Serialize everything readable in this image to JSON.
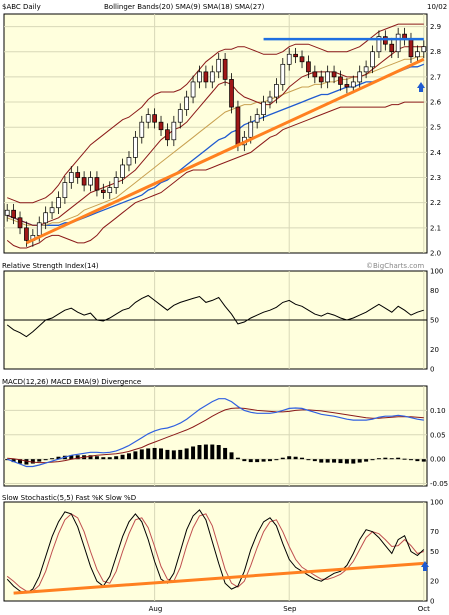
{
  "chart_data": {
    "type": "candlestick",
    "colors": {
      "bg": "#ffffdd",
      "grid": "#d8d8b8",
      "candle_up": "#ffffff",
      "candle_down": "#a01818",
      "bollinger": "#8b1a1a",
      "sma9": "#8b1a1a",
      "sma18": "#c8a050",
      "sma27": "#1f5ad0",
      "rsi": "#000000",
      "macd": "#3060e0",
      "macd_signal": "#8b1a1a",
      "hist": "#000000",
      "fast_k": "#000000",
      "slow_k": "#c05050",
      "trend": "#ff8020",
      "resistance": "#1f6fe0",
      "arrow": "#1f5ad0",
      "watermark": "#888888"
    },
    "header": {
      "symbol": "$ABC Daily",
      "indicators": "Bollinger Bands(20)   SMA(9)   SMA(18)   SMA(27)",
      "date": "10/02"
    },
    "x_labels": [
      {
        "label": "Aug",
        "idx": 23
      },
      {
        "label": "Sep",
        "idx": 44
      },
      {
        "label": "Oct",
        "idx": 65
      }
    ],
    "price_panel": {
      "ylim": [
        2.0,
        2.95
      ],
      "ticks": [
        2.0,
        2.1,
        2.2,
        2.3,
        2.4,
        2.5,
        2.6,
        2.7,
        2.8,
        2.9
      ],
      "tick_labels": [
        "2.0",
        "2.1",
        "2.2",
        "2.3",
        "2.4",
        "2.5",
        "2.6",
        "2.7",
        "2.8",
        "2.9"
      ],
      "close": [
        2.17,
        2.14,
        2.1,
        2.05,
        2.07,
        2.12,
        2.16,
        2.18,
        2.22,
        2.28,
        2.32,
        2.3,
        2.27,
        2.3,
        2.25,
        2.24,
        2.26,
        2.3,
        2.35,
        2.38,
        2.46,
        2.52,
        2.55,
        2.52,
        2.49,
        2.45,
        2.52,
        2.57,
        2.62,
        2.68,
        2.72,
        2.68,
        2.72,
        2.77,
        2.69,
        2.58,
        2.43,
        2.46,
        2.52,
        2.55,
        2.6,
        2.62,
        2.67,
        2.75,
        2.79,
        2.78,
        2.76,
        2.72,
        2.7,
        2.68,
        2.72,
        2.7,
        2.67,
        2.66,
        2.68,
        2.72,
        2.74,
        2.8,
        2.86,
        2.83,
        2.8,
        2.87,
        2.85,
        2.78,
        2.8,
        2.82
      ],
      "bb_upper": [
        2.22,
        2.21,
        2.2,
        2.2,
        2.2,
        2.21,
        2.22,
        2.24,
        2.27,
        2.31,
        2.34,
        2.37,
        2.4,
        2.43,
        2.45,
        2.47,
        2.49,
        2.51,
        2.53,
        2.54,
        2.56,
        2.58,
        2.61,
        2.63,
        2.64,
        2.64,
        2.64,
        2.65,
        2.67,
        2.7,
        2.73,
        2.76,
        2.78,
        2.8,
        2.81,
        2.81,
        2.82,
        2.82,
        2.81,
        2.8,
        2.79,
        2.79,
        2.79,
        2.8,
        2.82,
        2.83,
        2.83,
        2.83,
        2.82,
        2.81,
        2.8,
        2.8,
        2.8,
        2.8,
        2.81,
        2.82,
        2.84,
        2.86,
        2.88,
        2.89,
        2.9,
        2.91,
        2.91,
        2.91,
        2.91,
        2.91
      ],
      "bb_lower": [
        2.05,
        2.03,
        2.02,
        2.02,
        2.03,
        2.04,
        2.06,
        2.07,
        2.07,
        2.06,
        2.05,
        2.04,
        2.04,
        2.05,
        2.07,
        2.1,
        2.12,
        2.14,
        2.16,
        2.18,
        2.2,
        2.21,
        2.22,
        2.23,
        2.24,
        2.26,
        2.28,
        2.3,
        2.32,
        2.33,
        2.33,
        2.33,
        2.34,
        2.35,
        2.36,
        2.37,
        2.38,
        2.39,
        2.4,
        2.42,
        2.44,
        2.46,
        2.47,
        2.49,
        2.5,
        2.51,
        2.52,
        2.53,
        2.54,
        2.55,
        2.56,
        2.57,
        2.58,
        2.58,
        2.58,
        2.58,
        2.58,
        2.58,
        2.58,
        2.58,
        2.59,
        2.59,
        2.6,
        2.6,
        2.6,
        2.6
      ],
      "sma9": [
        2.15,
        2.14,
        2.13,
        2.12,
        2.11,
        2.11,
        2.12,
        2.13,
        2.14,
        2.16,
        2.18,
        2.2,
        2.22,
        2.24,
        2.25,
        2.26,
        2.27,
        2.28,
        2.29,
        2.31,
        2.33,
        2.36,
        2.39,
        2.42,
        2.45,
        2.47,
        2.49,
        2.5,
        2.52,
        2.55,
        2.58,
        2.61,
        2.64,
        2.67,
        2.68,
        2.67,
        2.64,
        2.62,
        2.61,
        2.6,
        2.59,
        2.59,
        2.61,
        2.63,
        2.66,
        2.68,
        2.7,
        2.71,
        2.72,
        2.72,
        2.72,
        2.72,
        2.71,
        2.7,
        2.7,
        2.7,
        2.71,
        2.73,
        2.75,
        2.77,
        2.79,
        2.81,
        2.82,
        2.82,
        2.82,
        2.82
      ],
      "sma18": [
        2.14,
        2.13,
        2.12,
        2.11,
        2.11,
        2.11,
        2.11,
        2.12,
        2.12,
        2.13,
        2.14,
        2.15,
        2.17,
        2.18,
        2.19,
        2.2,
        2.21,
        2.22,
        2.24,
        2.26,
        2.28,
        2.3,
        2.32,
        2.34,
        2.36,
        2.38,
        2.4,
        2.42,
        2.44,
        2.46,
        2.48,
        2.5,
        2.52,
        2.54,
        2.56,
        2.57,
        2.58,
        2.59,
        2.59,
        2.6,
        2.6,
        2.61,
        2.62,
        2.63,
        2.64,
        2.65,
        2.66,
        2.66,
        2.67,
        2.67,
        2.68,
        2.68,
        2.69,
        2.69,
        2.7,
        2.7,
        2.71,
        2.72,
        2.73,
        2.74,
        2.75,
        2.76,
        2.77,
        2.77,
        2.78,
        2.78
      ],
      "sma27": [
        2.15,
        2.14,
        2.13,
        2.12,
        2.11,
        2.11,
        2.11,
        2.11,
        2.11,
        2.12,
        2.12,
        2.13,
        2.14,
        2.15,
        2.16,
        2.17,
        2.18,
        2.19,
        2.2,
        2.21,
        2.22,
        2.23,
        2.25,
        2.26,
        2.28,
        2.29,
        2.31,
        2.33,
        2.35,
        2.37,
        2.39,
        2.41,
        2.43,
        2.45,
        2.46,
        2.48,
        2.49,
        2.51,
        2.52,
        2.53,
        2.54,
        2.55,
        2.56,
        2.57,
        2.58,
        2.59,
        2.6,
        2.61,
        2.62,
        2.63,
        2.63,
        2.64,
        2.65,
        2.66,
        2.66,
        2.67,
        2.68,
        2.68,
        2.69,
        2.7,
        2.71,
        2.72,
        2.73,
        2.74,
        2.74,
        2.75
      ],
      "trendline": {
        "x": [
          3,
          65
        ],
        "y": [
          2.04,
          2.77
        ]
      },
      "resistance": {
        "x": [
          40,
          65
        ],
        "y": [
          2.85,
          2.85
        ]
      }
    },
    "rsi_panel": {
      "title": "Relative Strength Index(14)",
      "watermark": "©BigCharts.com",
      "ylim": [
        0,
        100
      ],
      "ticks": [
        0,
        20,
        50,
        80,
        100
      ],
      "tick_labels": [
        "0",
        "20",
        "50",
        "80",
        "100"
      ],
      "ref_line": 50,
      "values": [
        45,
        40,
        37,
        33,
        38,
        44,
        50,
        52,
        56,
        60,
        62,
        58,
        55,
        57,
        50,
        49,
        52,
        56,
        60,
        62,
        68,
        72,
        75,
        70,
        65,
        60,
        65,
        68,
        70,
        72,
        74,
        68,
        70,
        73,
        64,
        56,
        46,
        48,
        52,
        55,
        58,
        60,
        63,
        68,
        70,
        66,
        64,
        60,
        56,
        54,
        57,
        55,
        52,
        50,
        52,
        55,
        58,
        62,
        66,
        62,
        58,
        64,
        60,
        55,
        58,
        60
      ]
    },
    "macd_panel": {
      "title": "MACD(12,26)   MACD EMA(9)   Divergence",
      "ylim": [
        -0.055,
        0.15
      ],
      "ticks": [
        -0.05,
        0.0,
        0.05,
        0.1
      ],
      "tick_labels": [
        "-0.05",
        "0.00",
        "0.05",
        "0.10"
      ],
      "macd": [
        0.0,
        -0.005,
        -0.01,
        -0.015,
        -0.015,
        -0.012,
        -0.008,
        -0.004,
        0.0,
        0.004,
        0.008,
        0.01,
        0.012,
        0.014,
        0.014,
        0.013,
        0.014,
        0.017,
        0.022,
        0.028,
        0.036,
        0.044,
        0.052,
        0.058,
        0.062,
        0.064,
        0.068,
        0.074,
        0.082,
        0.092,
        0.102,
        0.11,
        0.118,
        0.124,
        0.124,
        0.118,
        0.108,
        0.1,
        0.096,
        0.094,
        0.094,
        0.094,
        0.096,
        0.1,
        0.104,
        0.105,
        0.104,
        0.1,
        0.096,
        0.092,
        0.09,
        0.088,
        0.085,
        0.082,
        0.08,
        0.08,
        0.08,
        0.082,
        0.086,
        0.088,
        0.088,
        0.09,
        0.088,
        0.085,
        0.082,
        0.08
      ],
      "signal": [
        0.002,
        0.001,
        -0.001,
        -0.004,
        -0.006,
        -0.007,
        -0.007,
        -0.006,
        -0.005,
        -0.003,
        0.0,
        0.002,
        0.004,
        0.006,
        0.008,
        0.009,
        0.01,
        0.011,
        0.013,
        0.016,
        0.02,
        0.024,
        0.03,
        0.035,
        0.04,
        0.045,
        0.05,
        0.055,
        0.06,
        0.066,
        0.073,
        0.08,
        0.088,
        0.095,
        0.101,
        0.104,
        0.105,
        0.104,
        0.102,
        0.1,
        0.099,
        0.098,
        0.097,
        0.097,
        0.098,
        0.1,
        0.101,
        0.101,
        0.1,
        0.099,
        0.097,
        0.095,
        0.093,
        0.091,
        0.089,
        0.087,
        0.085,
        0.084,
        0.084,
        0.085,
        0.086,
        0.087,
        0.087,
        0.087,
        0.086,
        0.085
      ]
    },
    "stoch_panel": {
      "title": "Slow Stochastic(5,5)   Fast %K   Slow %D",
      "ylim": [
        0,
        100
      ],
      "ticks": [
        0,
        20,
        50,
        70,
        100
      ],
      "tick_labels": [
        "0",
        "20",
        "50",
        "70",
        "100"
      ],
      "fast_k": [
        22,
        15,
        10,
        8,
        12,
        25,
        45,
        65,
        80,
        90,
        88,
        75,
        55,
        35,
        20,
        15,
        25,
        45,
        65,
        80,
        88,
        80,
        62,
        40,
        22,
        18,
        28,
        50,
        72,
        86,
        92,
        82,
        60,
        38,
        18,
        12,
        15,
        30,
        52,
        68,
        80,
        84,
        76,
        58,
        42,
        34,
        30,
        26,
        22,
        20,
        24,
        28,
        30,
        36,
        48,
        62,
        72,
        70,
        64,
        56,
        48,
        62,
        66,
        50,
        46,
        52
      ],
      "slow_k": [
        25,
        20,
        14,
        10,
        10,
        16,
        30,
        50,
        68,
        82,
        88,
        84,
        70,
        50,
        32,
        20,
        18,
        30,
        50,
        68,
        82,
        84,
        74,
        55,
        35,
        22,
        20,
        34,
        56,
        74,
        86,
        88,
        76,
        54,
        32,
        18,
        14,
        20,
        36,
        54,
        70,
        80,
        82,
        70,
        55,
        42,
        34,
        30,
        26,
        22,
        22,
        24,
        27,
        32,
        40,
        52,
        64,
        70,
        68,
        62,
        55,
        56,
        62,
        56,
        48,
        50
      ],
      "trendline": {
        "x": [
          1,
          65
        ],
        "y": [
          8,
          38
        ]
      }
    }
  }
}
